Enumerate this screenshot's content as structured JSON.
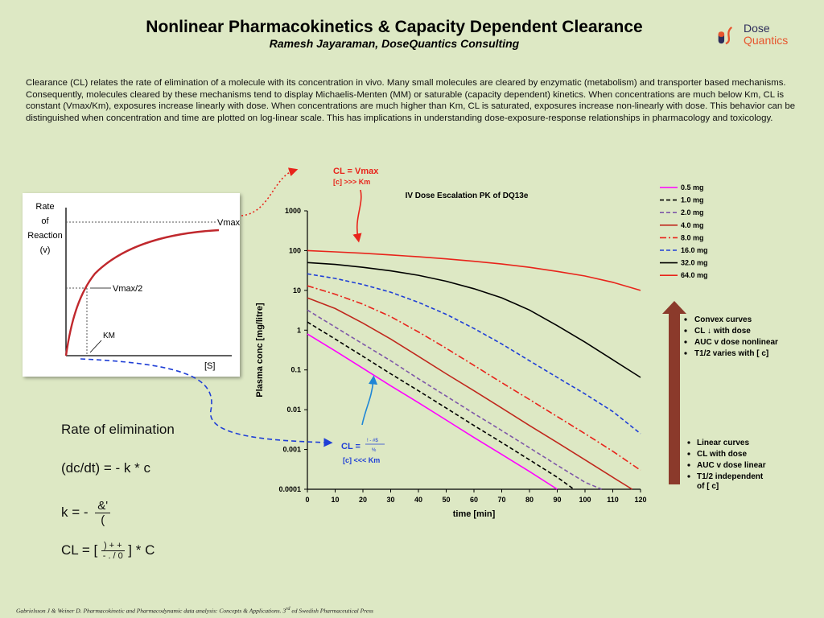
{
  "header": {
    "title": "Nonlinear Pharmacokinetics & Capacity Dependent Clearance",
    "subtitle": "Ramesh Jayaraman, DoseQuantics Consulting"
  },
  "logo": {
    "line1": "Dose",
    "line2": "Quantics",
    "colors": {
      "accent": "#e7552e",
      "dark": "#2d2d5a"
    }
  },
  "intro_text": "Clearance (CL) relates the rate of elimination of a molecule with its concentration in vivo. Many small molecules are cleared by enzymatic (metabolism) and transporter based mechanisms. Consequently, molecules cleared by these mechanisms tend to display Michaelis-Menten (MM) or saturable (capacity dependent) kinetics. When concentrations are much below Km, CL is constant (Vmax/Km), exposures increase linearly with dose. When concentrations are much higher than Km, CL is saturated, exposures increase non-linearly with dose. This behavior can be distinguished when concentration and time are plotted on log-linear scale. This has implications in understanding dose-exposure-response relationships in pharmacology and toxicology.",
  "mm_plot": {
    "ylabel_lines": [
      "Rate",
      "of",
      "Reaction",
      "(v)"
    ],
    "xlabel": "[S]",
    "vmax": "Vmax",
    "vmax_half": "Vmax/2",
    "km": "KM"
  },
  "formulas": {
    "heading": "Rate of elimination",
    "rate": "(dc/dt) = - k * c",
    "k_prefix": "k = -",
    "k_num": "&'",
    "k_den": "(",
    "cl_prefix": "CL = [",
    "cl_num": ") + +",
    "cl_den": "- . / 0",
    "cl_suffix": "] * C"
  },
  "annotations": {
    "top_cl": "CL = Vmax",
    "top_cond": "[c] >>> Km",
    "bottom_cl_prefix": "CL =",
    "bottom_frac_num": "! - #$",
    "bottom_frac_den": "%",
    "bottom_cond": "[c] <<< Km",
    "convex": [
      "Convex curves",
      "CL ↓ with dose",
      "AUC v dose nonlinear",
      "T1/2 varies with [ c]"
    ],
    "linear": [
      "Linear curves",
      "CL with dose",
      "AUC v dose linear",
      "T1/2 independent",
      "of [ c]"
    ],
    "arrow_color": "#8b3a2b"
  },
  "chart_data": {
    "type": "line",
    "title": "IV Dose Escalation PK of DQ13e",
    "xlabel": "time [min]",
    "ylabel": "Plasma conc [mg/litre]",
    "xlim": [
      0,
      120
    ],
    "ylim": [
      0.0001,
      1000
    ],
    "yscale": "log",
    "x_ticks": [
      0,
      10,
      20,
      30,
      40,
      50,
      60,
      70,
      80,
      90,
      100,
      110,
      120
    ],
    "y_ticks": [
      0.0001,
      0.001,
      0.01,
      0.1,
      1,
      10,
      100,
      1000
    ],
    "y_tick_labels": [
      "0.0001",
      "0.001",
      "0.01",
      "0.1",
      "1",
      "10",
      "100",
      "1000"
    ],
    "legend_position": "right",
    "series": [
      {
        "name": "0.5 mg",
        "color": "#ff00ff",
        "dash": "solid",
        "x": [
          0,
          10,
          20,
          30,
          40,
          50,
          60,
          70,
          80,
          90
        ],
        "y": [
          0.8,
          0.3,
          0.11,
          0.04,
          0.015,
          0.0055,
          0.002,
          0.00075,
          0.00028,
          0.0001
        ]
      },
      {
        "name": "1.0 mg",
        "color": "#000000",
        "dash": "dash",
        "x": [
          0,
          10,
          20,
          30,
          40,
          50,
          60,
          70,
          80,
          90,
          96
        ],
        "y": [
          1.6,
          0.6,
          0.22,
          0.08,
          0.03,
          0.011,
          0.004,
          0.0015,
          0.00055,
          0.0002,
          0.0001
        ]
      },
      {
        "name": "2.0 mg",
        "color": "#7e57a8",
        "dash": "dash",
        "x": [
          0,
          10,
          20,
          30,
          40,
          50,
          60,
          70,
          80,
          90,
          100,
          106
        ],
        "y": [
          3.2,
          1.2,
          0.45,
          0.17,
          0.06,
          0.022,
          0.008,
          0.003,
          0.0011,
          0.0004,
          0.00015,
          0.0001
        ]
      },
      {
        "name": "4.0 mg",
        "color": "#c0281d",
        "dash": "solid",
        "x": [
          0,
          10,
          20,
          30,
          40,
          50,
          60,
          70,
          80,
          90,
          100,
          110,
          117
        ],
        "y": [
          6.5,
          3.5,
          1.5,
          0.6,
          0.22,
          0.08,
          0.03,
          0.011,
          0.004,
          0.0015,
          0.00055,
          0.0002,
          0.0001
        ]
      },
      {
        "name": "8.0 mg",
        "color": "#e8241b",
        "dash": "dashdot",
        "x": [
          0,
          10,
          20,
          30,
          40,
          50,
          60,
          70,
          80,
          90,
          100,
          110,
          120
        ],
        "y": [
          13,
          8,
          4.5,
          2.2,
          0.9,
          0.35,
          0.13,
          0.048,
          0.018,
          0.0067,
          0.0025,
          0.0009,
          0.0003
        ]
      },
      {
        "name": "16.0 mg",
        "color": "#1f3fd6",
        "dash": "dash",
        "x": [
          0,
          10,
          20,
          30,
          40,
          50,
          60,
          70,
          80,
          90,
          100,
          110,
          120
        ],
        "y": [
          26,
          20,
          14,
          9,
          5,
          2.5,
          1.1,
          0.45,
          0.17,
          0.065,
          0.025,
          0.009,
          0.0025
        ]
      },
      {
        "name": "32.0 mg",
        "color": "#000000",
        "dash": "solid",
        "x": [
          0,
          10,
          20,
          30,
          40,
          50,
          60,
          70,
          80,
          90,
          100,
          110,
          120
        ],
        "y": [
          50,
          45,
          38,
          31,
          24,
          17,
          11,
          6.5,
          3.2,
          1.3,
          0.5,
          0.18,
          0.065
        ]
      },
      {
        "name": "64.0 mg",
        "color": "#e8241b",
        "dash": "solid",
        "x": [
          0,
          10,
          20,
          30,
          40,
          50,
          60,
          70,
          80,
          90,
          100,
          110,
          120
        ],
        "y": [
          100,
          93,
          86,
          78,
          70,
          62,
          54,
          46,
          38,
          30,
          23,
          16,
          10
        ]
      }
    ]
  }
}
